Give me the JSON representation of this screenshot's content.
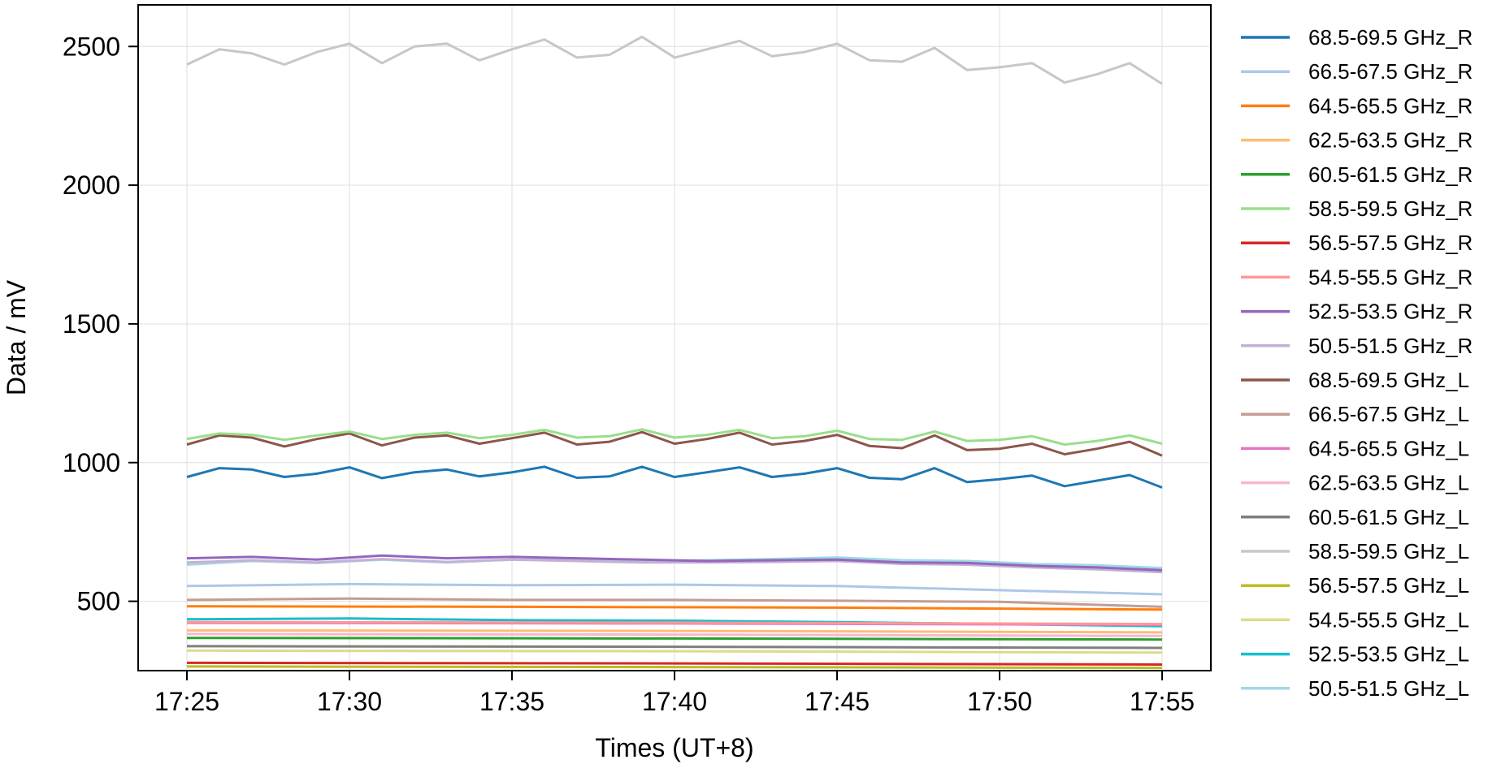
{
  "chart_data": {
    "type": "line",
    "xlabel": "Times (UT+8)",
    "ylabel": "Data / mV",
    "x_ticks": [
      "17:25",
      "17:30",
      "17:35",
      "17:40",
      "17:45",
      "17:50",
      "17:55"
    ],
    "y_ticks": [
      500,
      1000,
      1500,
      2000,
      2500
    ],
    "xlim": [
      "17:23:30",
      "17:56:30"
    ],
    "ylim": [
      250,
      2650
    ],
    "grid": true,
    "legend_position": "outside-right",
    "series": [
      {
        "name": "68.5-69.5 GHz_R",
        "color": "#1f77b4",
        "values": [
          [
            0,
            948
          ],
          [
            1,
            980
          ],
          [
            2,
            975
          ],
          [
            3,
            948
          ],
          [
            4,
            960
          ],
          [
            5,
            983
          ],
          [
            6,
            944
          ],
          [
            7,
            965
          ],
          [
            8,
            975
          ],
          [
            9,
            950
          ],
          [
            10,
            965
          ],
          [
            11,
            985
          ],
          [
            12,
            945
          ],
          [
            13,
            950
          ],
          [
            14,
            985
          ],
          [
            15,
            948
          ],
          [
            16,
            965
          ],
          [
            17,
            983
          ],
          [
            18,
            948
          ],
          [
            19,
            960
          ],
          [
            20,
            980
          ],
          [
            21,
            945
          ],
          [
            22,
            940
          ],
          [
            23,
            980
          ],
          [
            24,
            930
          ],
          [
            25,
            940
          ],
          [
            26,
            953
          ],
          [
            27,
            915
          ],
          [
            28,
            935
          ],
          [
            29,
            955
          ],
          [
            30,
            910
          ]
        ]
      },
      {
        "name": "66.5-67.5 GHz_R",
        "color": "#aec7e8",
        "values": [
          [
            0,
            555
          ],
          [
            5,
            562
          ],
          [
            10,
            558
          ],
          [
            15,
            560
          ],
          [
            20,
            555
          ],
          [
            25,
            540
          ],
          [
            30,
            525
          ]
        ]
      },
      {
        "name": "64.5-65.5 GHz_R",
        "color": "#ff7f0e",
        "values": [
          [
            0,
            482
          ],
          [
            10,
            480
          ],
          [
            20,
            477
          ],
          [
            30,
            470
          ]
        ]
      },
      {
        "name": "62.5-63.5 GHz_R",
        "color": "#ffbb78",
        "values": [
          [
            0,
            395
          ],
          [
            15,
            393
          ],
          [
            30,
            388
          ]
        ]
      },
      {
        "name": "60.5-61.5 GHz_R",
        "color": "#2ca02c",
        "values": [
          [
            0,
            368
          ],
          [
            15,
            366
          ],
          [
            30,
            362
          ]
        ]
      },
      {
        "name": "58.5-59.5 GHz_R",
        "color": "#98df8a",
        "values": [
          [
            0,
            1085
          ],
          [
            1,
            1105
          ],
          [
            2,
            1100
          ],
          [
            3,
            1082
          ],
          [
            4,
            1098
          ],
          [
            5,
            1112
          ],
          [
            6,
            1085
          ],
          [
            7,
            1100
          ],
          [
            8,
            1108
          ],
          [
            9,
            1088
          ],
          [
            10,
            1100
          ],
          [
            11,
            1118
          ],
          [
            12,
            1090
          ],
          [
            13,
            1095
          ],
          [
            14,
            1120
          ],
          [
            15,
            1090
          ],
          [
            16,
            1100
          ],
          [
            17,
            1118
          ],
          [
            18,
            1088
          ],
          [
            19,
            1095
          ],
          [
            20,
            1115
          ],
          [
            21,
            1085
          ],
          [
            22,
            1082
          ],
          [
            23,
            1112
          ],
          [
            24,
            1078
          ],
          [
            25,
            1082
          ],
          [
            26,
            1095
          ],
          [
            27,
            1065
          ],
          [
            28,
            1078
          ],
          [
            29,
            1098
          ],
          [
            30,
            1068
          ]
        ]
      },
      {
        "name": "56.5-57.5 GHz_R",
        "color": "#d62728",
        "values": [
          [
            0,
            278
          ],
          [
            15,
            276
          ],
          [
            30,
            272
          ]
        ]
      },
      {
        "name": "54.5-55.5 GHz_R",
        "color": "#ff9896",
        "values": [
          [
            0,
            425
          ],
          [
            15,
            423
          ],
          [
            30,
            418
          ]
        ]
      },
      {
        "name": "52.5-53.5 GHz_R",
        "color": "#9467bd",
        "values": [
          [
            0,
            655
          ],
          [
            2,
            660
          ],
          [
            4,
            650
          ],
          [
            6,
            665
          ],
          [
            8,
            655
          ],
          [
            10,
            660
          ],
          [
            12,
            655
          ],
          [
            14,
            650
          ],
          [
            16,
            645
          ],
          [
            18,
            648
          ],
          [
            20,
            650
          ],
          [
            22,
            640
          ],
          [
            24,
            638
          ],
          [
            26,
            628
          ],
          [
            28,
            622
          ],
          [
            30,
            612
          ]
        ]
      },
      {
        "name": "50.5-51.5 GHz_R",
        "color": "#c5b0d5",
        "values": [
          [
            0,
            640
          ],
          [
            2,
            648
          ],
          [
            4,
            640
          ],
          [
            6,
            652
          ],
          [
            8,
            642
          ],
          [
            10,
            650
          ],
          [
            12,
            645
          ],
          [
            14,
            640
          ],
          [
            16,
            640
          ],
          [
            18,
            642
          ],
          [
            20,
            645
          ],
          [
            22,
            635
          ],
          [
            24,
            632
          ],
          [
            26,
            622
          ],
          [
            28,
            615
          ],
          [
            30,
            605
          ]
        ]
      },
      {
        "name": "68.5-69.5 GHz_L",
        "color": "#8c564b",
        "values": [
          [
            0,
            1065
          ],
          [
            1,
            1098
          ],
          [
            2,
            1090
          ],
          [
            3,
            1058
          ],
          [
            4,
            1085
          ],
          [
            5,
            1105
          ],
          [
            6,
            1062
          ],
          [
            7,
            1090
          ],
          [
            8,
            1098
          ],
          [
            9,
            1068
          ],
          [
            10,
            1088
          ],
          [
            11,
            1108
          ],
          [
            12,
            1065
          ],
          [
            13,
            1075
          ],
          [
            14,
            1110
          ],
          [
            15,
            1068
          ],
          [
            16,
            1085
          ],
          [
            17,
            1108
          ],
          [
            18,
            1065
          ],
          [
            19,
            1078
          ],
          [
            20,
            1100
          ],
          [
            21,
            1060
          ],
          [
            22,
            1052
          ],
          [
            23,
            1098
          ],
          [
            24,
            1045
          ],
          [
            25,
            1050
          ],
          [
            26,
            1068
          ],
          [
            27,
            1030
          ],
          [
            28,
            1050
          ],
          [
            29,
            1075
          ],
          [
            30,
            1025
          ]
        ]
      },
      {
        "name": "66.5-67.5 GHz_L",
        "color": "#c49c94",
        "values": [
          [
            0,
            505
          ],
          [
            5,
            510
          ],
          [
            10,
            505
          ],
          [
            15,
            505
          ],
          [
            20,
            502
          ],
          [
            25,
            498
          ],
          [
            30,
            480
          ]
        ]
      },
      {
        "name": "64.5-65.5 GHz_L",
        "color": "#e377c2",
        "values": [
          [
            0,
            422
          ],
          [
            15,
            420
          ],
          [
            30,
            415
          ]
        ]
      },
      {
        "name": "62.5-63.5 GHz_L",
        "color": "#f7b6d2",
        "values": [
          [
            0,
            382
          ],
          [
            15,
            380
          ],
          [
            30,
            375
          ]
        ]
      },
      {
        "name": "60.5-61.5 GHz_L",
        "color": "#7f7f7f",
        "values": [
          [
            0,
            338
          ],
          [
            15,
            336
          ],
          [
            30,
            332
          ]
        ]
      },
      {
        "name": "58.5-59.5 GHz_L",
        "color": "#c7c7c7",
        "values": [
          [
            0,
            2435
          ],
          [
            1,
            2490
          ],
          [
            2,
            2475
          ],
          [
            3,
            2435
          ],
          [
            4,
            2480
          ],
          [
            5,
            2510
          ],
          [
            6,
            2440
          ],
          [
            7,
            2500
          ],
          [
            8,
            2510
          ],
          [
            9,
            2450
          ],
          [
            10,
            2490
          ],
          [
            11,
            2525
          ],
          [
            12,
            2460
          ],
          [
            13,
            2470
          ],
          [
            14,
            2535
          ],
          [
            15,
            2460
          ],
          [
            16,
            2490
          ],
          [
            17,
            2520
          ],
          [
            18,
            2465
          ],
          [
            19,
            2480
          ],
          [
            20,
            2510
          ],
          [
            21,
            2450
          ],
          [
            22,
            2445
          ],
          [
            23,
            2495
          ],
          [
            24,
            2415
          ],
          [
            25,
            2425
          ],
          [
            26,
            2440
          ],
          [
            27,
            2370
          ],
          [
            28,
            2400
          ],
          [
            29,
            2440
          ],
          [
            30,
            2365
          ]
        ]
      },
      {
        "name": "56.5-57.5 GHz_L",
        "color": "#bcbd22",
        "values": [
          [
            0,
            265
          ],
          [
            15,
            263
          ],
          [
            30,
            260
          ]
        ]
      },
      {
        "name": "54.5-55.5 GHz_L",
        "color": "#dbdb8d",
        "values": [
          [
            0,
            322
          ],
          [
            15,
            320
          ],
          [
            30,
            315
          ]
        ]
      },
      {
        "name": "52.5-53.5 GHz_L",
        "color": "#17becf",
        "values": [
          [
            0,
            435
          ],
          [
            5,
            438
          ],
          [
            10,
            432
          ],
          [
            15,
            430
          ],
          [
            20,
            425
          ],
          [
            25,
            418
          ],
          [
            30,
            410
          ]
        ]
      },
      {
        "name": "50.5-51.5 GHz_L",
        "color": "#9edae5",
        "values": [
          [
            0,
            632
          ],
          [
            2,
            645
          ],
          [
            4,
            638
          ],
          [
            6,
            650
          ],
          [
            8,
            640
          ],
          [
            10,
            650
          ],
          [
            12,
            648
          ],
          [
            14,
            645
          ],
          [
            16,
            648
          ],
          [
            18,
            652
          ],
          [
            20,
            658
          ],
          [
            22,
            648
          ],
          [
            24,
            645
          ],
          [
            26,
            635
          ],
          [
            28,
            630
          ],
          [
            30,
            620
          ]
        ]
      }
    ]
  }
}
